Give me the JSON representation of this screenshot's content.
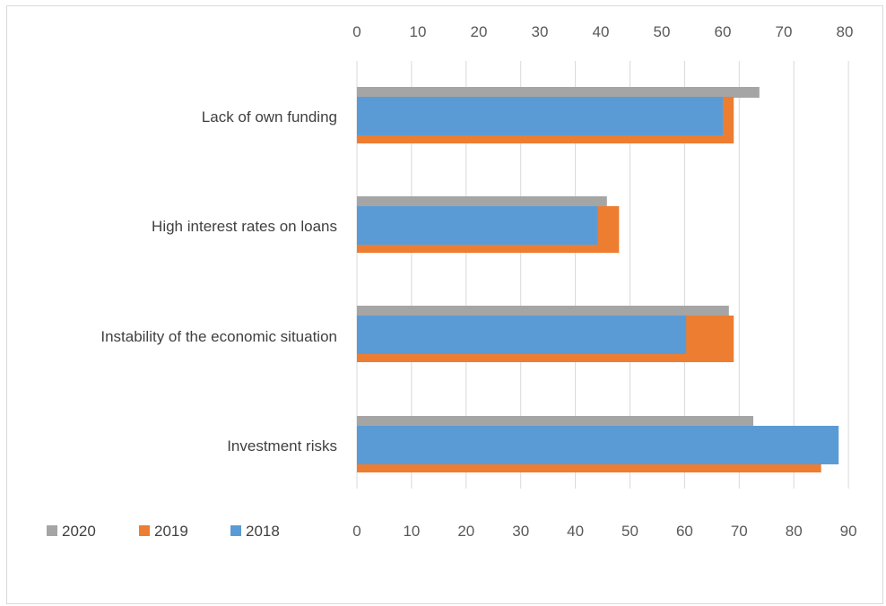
{
  "chart_data": {
    "type": "bar",
    "orientation": "horizontal",
    "categories": [
      "Lack of own funding",
      "High interest rates on loans",
      "Instability of the economic situation",
      "Investment risks"
    ],
    "series": [
      {
        "name": "2020",
        "color": "#a5a5a5",
        "axis": "secondary",
        "values": [
          66,
          41,
          61,
          65
        ]
      },
      {
        "name": "2019",
        "color": "#ed7d31",
        "axis": "primary",
        "values": [
          69,
          48,
          69,
          85
        ]
      },
      {
        "name": "2018",
        "color": "#5b9bd5",
        "axis": "secondary",
        "values": [
          60,
          39.5,
          54,
          79
        ]
      }
    ],
    "primary_axis": {
      "position": "bottom",
      "range": [
        0,
        90
      ],
      "ticks": [
        "0",
        "10",
        "20",
        "30",
        "40",
        "50",
        "60",
        "70",
        "80",
        "90"
      ]
    },
    "secondary_axis": {
      "position": "top",
      "range": [
        0,
        80
      ],
      "ticks": [
        "0",
        "10",
        "20",
        "30",
        "40",
        "50",
        "60",
        "70",
        "80"
      ]
    },
    "grid": true,
    "legend": {
      "position": "bottom-left",
      "entries": [
        {
          "name": "2020",
          "color": "#a5a5a5"
        },
        {
          "name": "2019",
          "color": "#ed7d31"
        },
        {
          "name": "2018",
          "color": "#5b9bd5"
        }
      ]
    }
  }
}
